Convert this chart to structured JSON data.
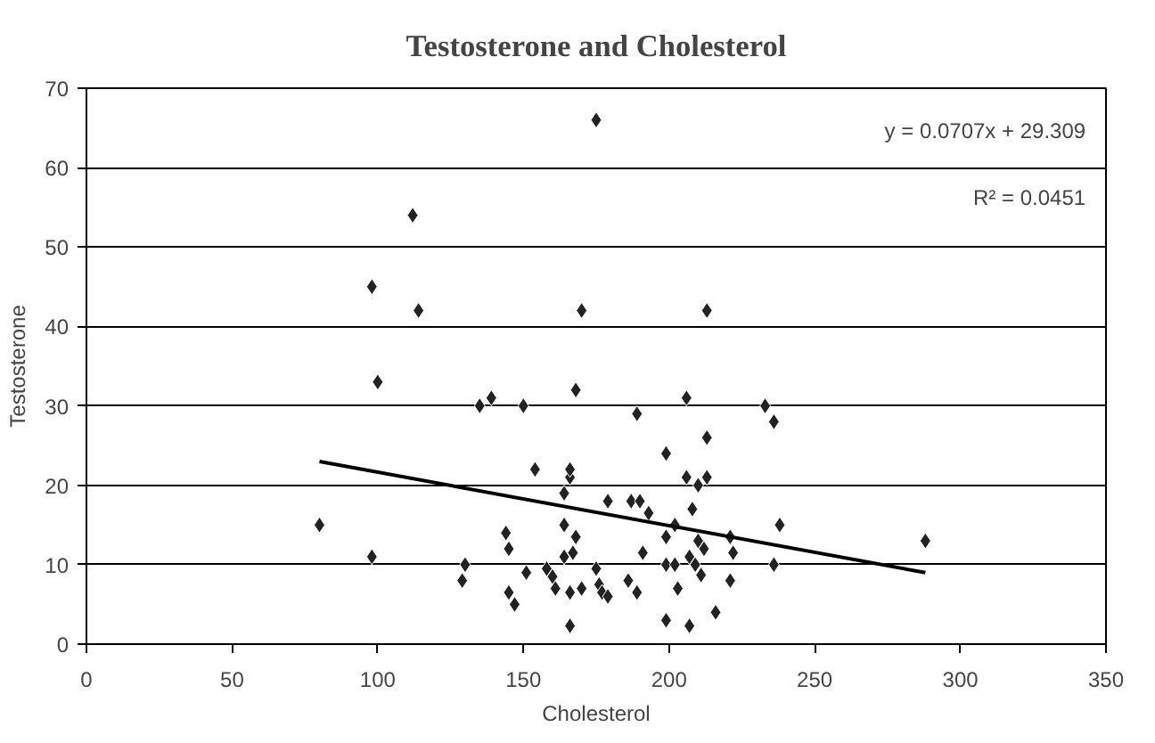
{
  "chart_data": {
    "type": "scatter",
    "title": "Testosterone and Cholesterol",
    "xlabel": "Cholesterol",
    "ylabel": "Testosterone",
    "xlim": [
      0,
      350
    ],
    "xticks": [
      0,
      50,
      100,
      150,
      200,
      250,
      300,
      350
    ],
    "ylim": [
      0,
      70
    ],
    "yticks": [
      0,
      10,
      20,
      30,
      40,
      50,
      60,
      70
    ],
    "grid": "y",
    "marker": "diamond",
    "annotations": [
      "y = 0.0707x + 29.309",
      "R² = 0.0451"
    ],
    "series": [
      {
        "color": "#222222",
        "x": [
          80,
          98,
          98,
          100,
          114,
          112,
          135,
          139,
          150,
          154,
          166,
          166,
          168,
          170,
          164,
          164,
          168,
          167,
          164,
          144,
          145,
          145,
          147,
          151,
          130,
          129,
          158,
          160,
          161,
          166,
          166,
          170,
          175,
          176,
          177,
          179,
          179,
          186,
          189,
          191,
          189,
          187,
          190,
          193,
          199,
          199,
          199,
          199,
          202,
          203,
          202,
          206,
          206,
          208,
          207,
          207,
          210,
          210,
          211,
          213,
          213,
          213,
          212,
          209,
          216,
          221,
          221,
          222,
          233,
          236,
          236,
          238,
          288,
          175
        ],
        "values": [
          15,
          45,
          11,
          33,
          42,
          54,
          30,
          31,
          30,
          22,
          21,
          22,
          32,
          42,
          19,
          15,
          13.5,
          11.5,
          11,
          14,
          12,
          6.5,
          5,
          9,
          10,
          8,
          9.5,
          8.5,
          7,
          6.5,
          2.3,
          7,
          9.5,
          7.5,
          6.5,
          6,
          18,
          8,
          6.5,
          11.5,
          29,
          18,
          18,
          16.5,
          24,
          13.5,
          10,
          3,
          10,
          7,
          15,
          31,
          21,
          17,
          2.3,
          11,
          20,
          13,
          8.7,
          26,
          21,
          42,
          12,
          10,
          4,
          13.5,
          8,
          11.5,
          30,
          28,
          10,
          15,
          13,
          66
        ]
      },
      {
        "type": "line",
        "marker": "none",
        "color": "#000000",
        "x": [
          80,
          288
        ],
        "values": [
          23,
          9
        ]
      }
    ]
  }
}
